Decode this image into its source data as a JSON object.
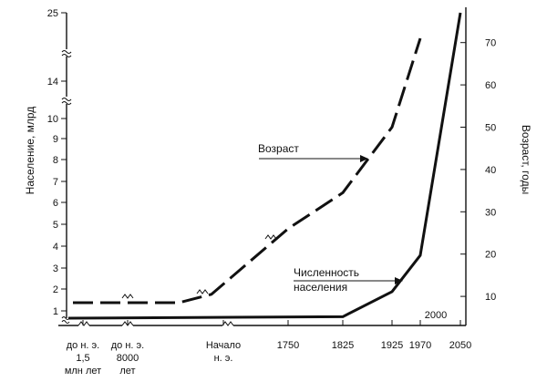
{
  "chart_data": {
    "type": "line",
    "title": "",
    "ylabel_left": "Население, млрд",
    "ylabel_right": "Возраст, годы",
    "x_categories": [
      {
        "id": "c0",
        "lines": [
          "до н. э.",
          "1,5",
          "млн лет"
        ]
      },
      {
        "id": "c1",
        "lines": [
          "до н. э.",
          "8000",
          "лет"
        ]
      },
      {
        "id": "c2",
        "lines": [
          "Начало",
          "н. э."
        ]
      },
      {
        "id": "c3",
        "lines": [
          "1750"
        ]
      },
      {
        "id": "c4",
        "lines": [
          "1825"
        ]
      },
      {
        "id": "c5",
        "lines": [
          "1925"
        ]
      },
      {
        "id": "c6",
        "lines": [
          "1970"
        ]
      },
      {
        "id": "c7",
        "lines": [
          "2050"
        ]
      }
    ],
    "x_extra_label": "2000",
    "left_ticks": [
      "1",
      "2",
      "3",
      "4",
      "5",
      "6",
      "7",
      "8",
      "9",
      "10",
      "14",
      "25"
    ],
    "left_axis_breaks": "between 10 and 14, and between 14 and 25",
    "right_ticks": [
      "10",
      "20",
      "30",
      "40",
      "50",
      "60",
      "70"
    ],
    "right_ylim": [
      0,
      75
    ],
    "x_axis_breaks": "between до н. э. 1,5 млн лет and до н. э. 8000 лет, and between 8000 лет and Начало н. э.",
    "series": [
      {
        "name": "Численность населения",
        "axis": "left",
        "style": "solid",
        "color": "#111111",
        "points": [
          {
            "x": "до н. э. 1,5 млн лет",
            "y": 0.5
          },
          {
            "x": "1825",
            "y": 0.6
          },
          {
            "x": "1925",
            "y": 1.9
          },
          {
            "x": "1970",
            "y": 3.6
          },
          {
            "x": "2050",
            "y": 25
          }
        ]
      },
      {
        "name": "Возраст",
        "axis": "right",
        "style": "dashed",
        "color": "#111111",
        "points": [
          {
            "x": "до н. э. 1,5 млн лет",
            "y": 8.5
          },
          {
            "x": "до н. э. 8000 лет",
            "y": 8.5
          },
          {
            "x": "Начало н. э.",
            "y": 8.5
          },
          {
            "x": "Начало н. э.",
            "y": 10.5
          },
          {
            "x": "1750",
            "y": 26
          },
          {
            "x": "1825",
            "y": 34.5
          },
          {
            "x": "1925",
            "y": 50
          },
          {
            "x": "1970",
            "y": 71
          }
        ]
      }
    ],
    "annotations": [
      {
        "id": "age",
        "lines": [
          "Возраст"
        ]
      },
      {
        "id": "population",
        "lines": [
          "Численность",
          "населения"
        ]
      }
    ]
  }
}
